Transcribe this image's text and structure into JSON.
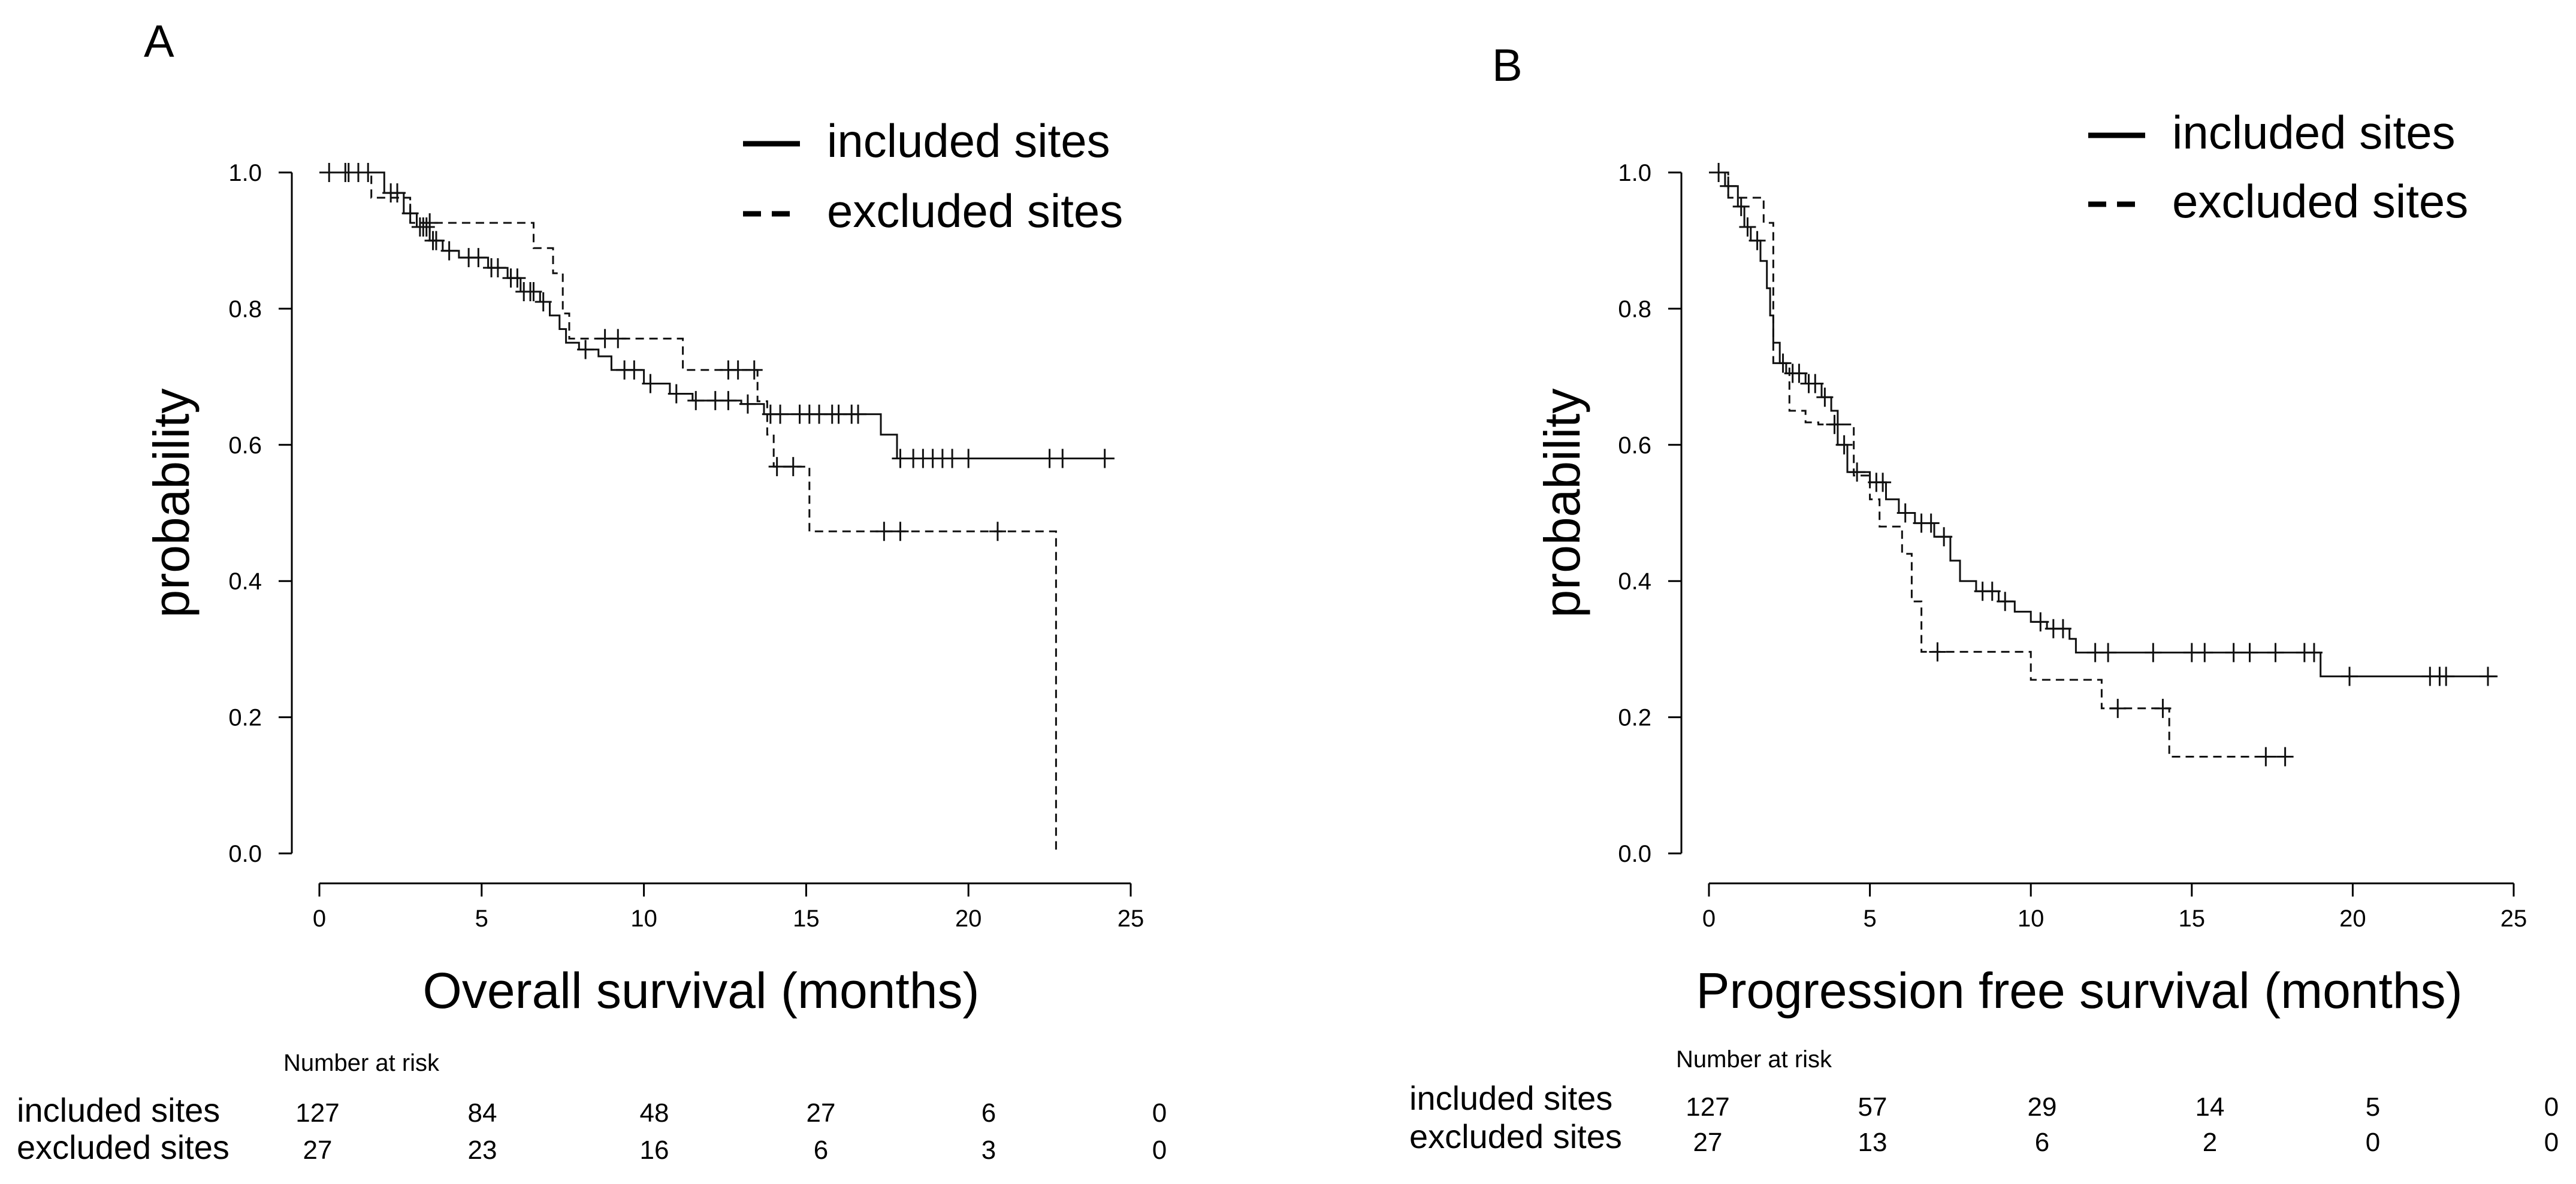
{
  "chart_data": [
    {
      "type": "line",
      "subtype": "kaplan-meier",
      "panel_label": "A",
      "xlabel": "Overall survival (months)",
      "ylabel": "probability",
      "xlim": [
        0,
        25
      ],
      "ylim": [
        0,
        1.0
      ],
      "x_ticks": [
        "0",
        "5",
        "10",
        "15",
        "20",
        "25"
      ],
      "y_ticks": [
        "0.0",
        "0.2",
        "0.4",
        "0.6",
        "0.8",
        "1.0"
      ],
      "legend": {
        "position": "top-right",
        "entries": [
          {
            "label": "included sites",
            "style": "solid"
          },
          {
            "label": "excluded sites",
            "style": "dashed"
          }
        ]
      },
      "series": [
        {
          "name": "included sites",
          "style": "solid",
          "steps": [
            [
              0,
              1.0
            ],
            [
              2.0,
              0.97
            ],
            [
              2.6,
              0.94
            ],
            [
              3.0,
              0.92
            ],
            [
              3.4,
              0.9
            ],
            [
              3.8,
              0.885
            ],
            [
              4.3,
              0.875
            ],
            [
              5.2,
              0.86
            ],
            [
              5.8,
              0.845
            ],
            [
              6.2,
              0.825
            ],
            [
              6.8,
              0.81
            ],
            [
              7.1,
              0.79
            ],
            [
              7.4,
              0.77
            ],
            [
              7.6,
              0.75
            ],
            [
              8.0,
              0.74
            ],
            [
              8.6,
              0.73
            ],
            [
              9.0,
              0.71
            ],
            [
              10.0,
              0.69
            ],
            [
              10.8,
              0.675
            ],
            [
              11.5,
              0.665
            ],
            [
              13.0,
              0.66
            ],
            [
              13.7,
              0.645
            ],
            [
              14.3,
              0.645
            ],
            [
              17.3,
              0.615
            ],
            [
              17.8,
              0.58
            ],
            [
              24.5,
              0.58
            ]
          ],
          "censor_x": [
            0.3,
            0.8,
            1.2,
            1.5,
            2.2,
            2.4,
            2.8,
            3.1,
            3.2,
            3.3,
            3.5,
            3.6,
            4.0,
            4.6,
            4.9,
            5.3,
            5.5,
            5.9,
            6.1,
            6.3,
            6.5,
            6.6,
            6.9,
            8.2,
            9.4,
            9.7,
            10.2,
            11.0,
            11.6,
            12.2,
            12.6,
            13.2,
            13.9,
            14.2,
            14.8,
            15.1,
            15.4,
            15.8,
            16.0,
            16.4,
            16.6,
            17.9,
            18.3,
            18.6,
            18.9,
            19.2,
            19.5,
            20.0,
            22.5,
            22.9,
            24.2
          ]
        },
        {
          "name": "excluded sites",
          "style": "dashed",
          "steps": [
            [
              0,
              1.0
            ],
            [
              1.6,
              0.963
            ],
            [
              2.8,
              0.926
            ],
            [
              6.6,
              0.889
            ],
            [
              7.2,
              0.852
            ],
            [
              7.5,
              0.793
            ],
            [
              7.7,
              0.756
            ],
            [
              11.2,
              0.71
            ],
            [
              13.5,
              0.664
            ],
            [
              13.8,
              0.615
            ],
            [
              14.0,
              0.568
            ],
            [
              15.1,
              0.473
            ],
            [
              22.7,
              0.473
            ],
            [
              22.7,
              0.0
            ]
          ],
          "censor_x": [
            0.9,
            3.4,
            8.8,
            9.2,
            12.6,
            12.9,
            13.4,
            14.1,
            14.6,
            17.4,
            17.9,
            20.9
          ]
        }
      ],
      "risk_table": {
        "title": "Number at risk",
        "times": [
          0,
          5,
          10,
          15,
          20,
          25
        ],
        "rows": [
          {
            "label": "included sites",
            "values": [
              "127",
              "84",
              "48",
              "27",
              "6",
              "0"
            ]
          },
          {
            "label": "excluded sites",
            "values": [
              "27",
              "23",
              "16",
              "6",
              "3",
              "0"
            ]
          }
        ]
      }
    },
    {
      "type": "line",
      "subtype": "kaplan-meier",
      "panel_label": "B",
      "xlabel": "Progression free survival (months)",
      "ylabel": "probability",
      "xlim": [
        0,
        25
      ],
      "ylim": [
        0,
        1.0
      ],
      "x_ticks": [
        "0",
        "5",
        "10",
        "15",
        "20",
        "25"
      ],
      "y_ticks": [
        "0.0",
        "0.2",
        "0.4",
        "0.6",
        "0.8",
        "1.0"
      ],
      "legend": {
        "position": "top-right",
        "entries": [
          {
            "label": "included sites",
            "style": "solid"
          },
          {
            "label": "excluded sites",
            "style": "dashed"
          }
        ]
      },
      "series": [
        {
          "name": "included sites",
          "style": "solid",
          "steps": [
            [
              0,
              1.0
            ],
            [
              0.5,
              0.98
            ],
            [
              0.9,
              0.95
            ],
            [
              1.1,
              0.92
            ],
            [
              1.3,
              0.9
            ],
            [
              1.6,
              0.87
            ],
            [
              1.8,
              0.83
            ],
            [
              1.9,
              0.79
            ],
            [
              2.0,
              0.75
            ],
            [
              2.2,
              0.72
            ],
            [
              2.4,
              0.705
            ],
            [
              3.0,
              0.69
            ],
            [
              3.5,
              0.67
            ],
            [
              3.8,
              0.65
            ],
            [
              4.0,
              0.6
            ],
            [
              4.3,
              0.56
            ],
            [
              5.0,
              0.545
            ],
            [
              5.5,
              0.52
            ],
            [
              5.9,
              0.5
            ],
            [
              6.4,
              0.485
            ],
            [
              7.0,
              0.465
            ],
            [
              7.5,
              0.43
            ],
            [
              7.8,
              0.4
            ],
            [
              8.3,
              0.385
            ],
            [
              9.0,
              0.37
            ],
            [
              9.5,
              0.355
            ],
            [
              10.0,
              0.34
            ],
            [
              10.5,
              0.33
            ],
            [
              11.2,
              0.315
            ],
            [
              11.4,
              0.295
            ],
            [
              18.9,
              0.295
            ],
            [
              19.0,
              0.26
            ],
            [
              24.5,
              0.26
            ]
          ],
          "censor_x": [
            0.3,
            0.6,
            1.0,
            1.2,
            1.5,
            2.3,
            2.6,
            2.8,
            3.1,
            3.3,
            3.6,
            4.2,
            4.6,
            5.2,
            5.4,
            6.1,
            6.6,
            6.9,
            7.3,
            8.5,
            8.8,
            9.2,
            10.3,
            10.7,
            11.0,
            12.0,
            12.4,
            13.8,
            15.0,
            15.4,
            16.3,
            16.8,
            17.6,
            18.5,
            18.8,
            19.9,
            22.4,
            22.7,
            22.9,
            24.2
          ]
        },
        {
          "name": "excluded sites",
          "style": "dashed",
          "steps": [
            [
              0,
              1.0
            ],
            [
              0.6,
              0.963
            ],
            [
              1.7,
              0.926
            ],
            [
              2.0,
              0.72
            ],
            [
              2.5,
              0.65
            ],
            [
              3.0,
              0.633
            ],
            [
              3.4,
              0.63
            ],
            [
              4.5,
              0.555
            ],
            [
              5.0,
              0.52
            ],
            [
              5.3,
              0.48
            ],
            [
              6.0,
              0.44
            ],
            [
              6.3,
              0.37
            ],
            [
              6.6,
              0.296
            ],
            [
              9.9,
              0.296
            ],
            [
              10.0,
              0.255
            ],
            [
              12.1,
              0.255
            ],
            [
              12.2,
              0.213
            ],
            [
              14.2,
              0.213
            ],
            [
              14.3,
              0.142
            ],
            [
              18.2,
              0.142
            ]
          ],
          "censor_x": [
            3.9,
            7.1,
            12.7,
            14.1,
            17.3,
            17.9
          ]
        }
      ],
      "risk_table": {
        "title": "Number at risk",
        "times": [
          0,
          5,
          10,
          15,
          20,
          25
        ],
        "rows": [
          {
            "label": "included sites",
            "values": [
              "127",
              "57",
              "29",
              "14",
              "5",
              "0"
            ]
          },
          {
            "label": "excluded sites",
            "values": [
              "27",
              "13",
              "6",
              "2",
              "0",
              "0"
            ]
          }
        ]
      }
    }
  ]
}
